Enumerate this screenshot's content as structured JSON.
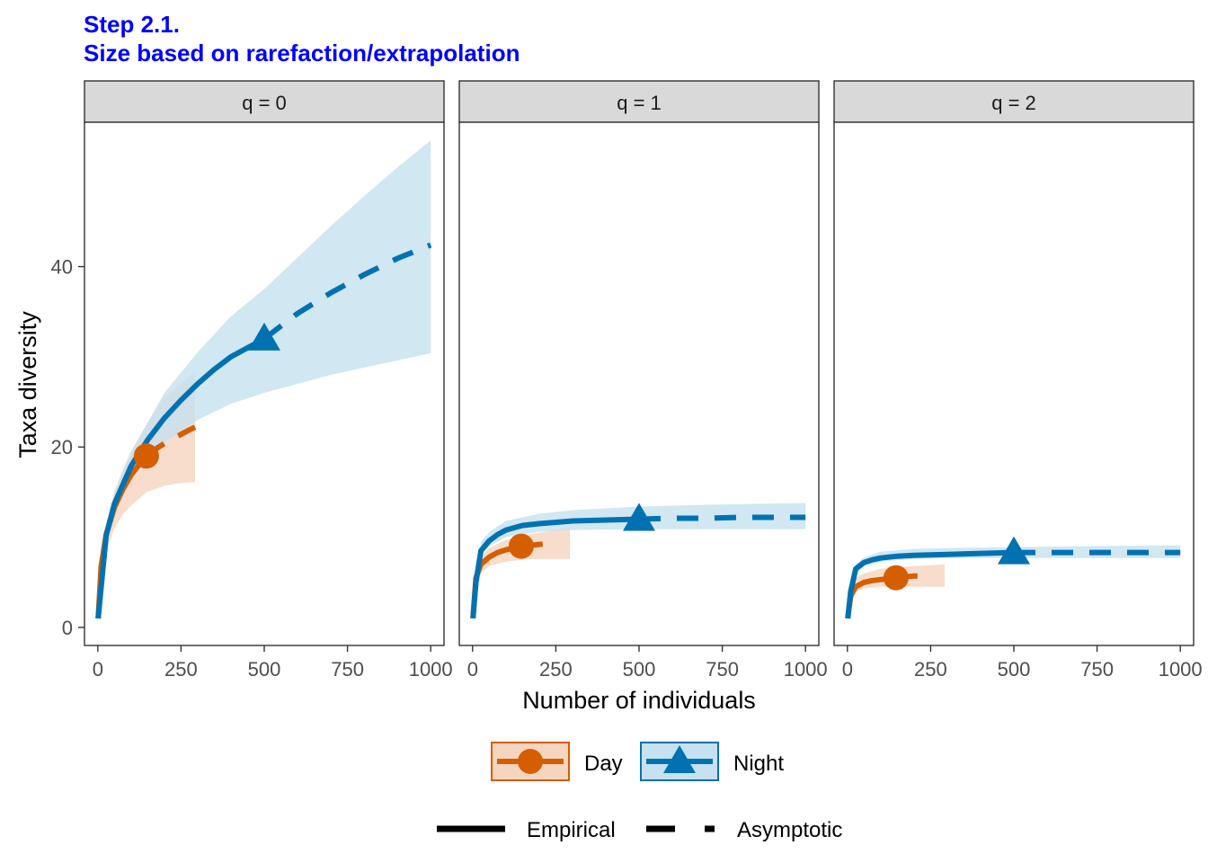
{
  "title": {
    "line1": "Step 2.1.",
    "line2": "Size based on rarefaction/extrapolation",
    "color": "#0000ff"
  },
  "colors": {
    "Day": "#d55e00",
    "Night": "#0072b2",
    "Day_band": "#f6d5bf",
    "Night_band": "#c6e1ef",
    "strip_bg": "#d9d9d9"
  },
  "chart_data": {
    "type": "line",
    "xlabel": "Number of individuals",
    "ylabel": "Taxa diversity",
    "xlim": [
      -40,
      1040
    ],
    "ylim": [
      -2,
      56
    ],
    "xticks": [
      0,
      250,
      500,
      750,
      1000
    ],
    "xtick_labels": [
      "0",
      "250",
      "500",
      "750",
      "1000"
    ],
    "yticks": [
      0,
      20,
      40
    ],
    "ytick_labels": [
      "0",
      "20",
      "40"
    ],
    "grid": false,
    "legend_position": "bottom",
    "legend": {
      "series": [
        {
          "name": "Day",
          "marker": "circle"
        },
        {
          "name": "Night",
          "marker": "triangle"
        }
      ],
      "linetypes": [
        {
          "name": "Empirical",
          "style": "solid"
        },
        {
          "name": "Asymptotic",
          "style": "dashed"
        }
      ]
    },
    "panels": [
      {
        "label": "q = 0",
        "series": [
          {
            "name": "Day",
            "observed": {
              "x": 146,
              "y": 19.0
            },
            "rarefaction": {
              "x": [
                1,
                10,
                25,
                50,
                75,
                100,
                125,
                146
              ],
              "y": [
                1.0,
                6.8,
                10.3,
                13.3,
                15.3,
                16.9,
                18.1,
                19.0
              ]
            },
            "extrapolation": {
              "x": [
                146,
                175,
                200,
                225,
                250,
                275,
                292
              ],
              "y": [
                19.0,
                19.8,
                20.4,
                20.9,
                21.4,
                21.9,
                22.2
              ]
            },
            "band": {
              "x": [
                1,
                25,
                50,
                75,
                100,
                146,
                200,
                250,
                292
              ],
              "lower": [
                1.0,
                8.5,
                11.0,
                12.5,
                13.5,
                15.0,
                15.7,
                16.0,
                16.1
              ],
              "upper": [
                1.0,
                11.5,
                15.0,
                17.5,
                19.5,
                22.5,
                25.5,
                27.0,
                28.3
              ]
            }
          },
          {
            "name": "Night",
            "observed": {
              "x": 500,
              "y": 32.0
            },
            "rarefaction": {
              "x": [
                1,
                25,
                50,
                100,
                150,
                200,
                250,
                300,
                350,
                400,
                450,
                500
              ],
              "y": [
                1.0,
                10.2,
                13.7,
                17.9,
                20.8,
                23.2,
                25.2,
                27.0,
                28.6,
                30.0,
                31.0,
                32.0
              ]
            },
            "extrapolation": {
              "x": [
                500,
                600,
                700,
                800,
                900,
                1000
              ],
              "y": [
                32.0,
                34.8,
                37.1,
                39.1,
                40.9,
                42.4
              ]
            },
            "band": {
              "x": [
                1,
                25,
                50,
                100,
                200,
                300,
                400,
                500,
                600,
                700,
                800,
                900,
                1000
              ],
              "lower": [
                1.0,
                9.5,
                12.5,
                16.5,
                20.5,
                23.0,
                24.8,
                26.0,
                27.0,
                28.0,
                28.8,
                29.6,
                30.4
              ],
              "upper": [
                1.0,
                11.0,
                15.0,
                19.5,
                26.0,
                30.5,
                34.5,
                37.5,
                41.0,
                44.5,
                47.8,
                51.0,
                54.0
              ]
            }
          }
        ]
      },
      {
        "label": "q = 1",
        "series": [
          {
            "name": "Day",
            "observed": {
              "x": 146,
              "y": 9.0
            },
            "rarefaction": {
              "x": [
                1,
                10,
                25,
                50,
                75,
                100,
                125,
                146
              ],
              "y": [
                1.0,
                5.5,
                7.0,
                7.8,
                8.3,
                8.6,
                8.8,
                9.0
              ]
            },
            "extrapolation": {
              "x": [
                146,
                175,
                200,
                225,
                250
              ],
              "y": [
                9.0,
                9.1,
                9.2,
                9.3,
                9.4
              ]
            },
            "band": {
              "x": [
                1,
                25,
                50,
                100,
                146,
                200,
                250,
                292
              ],
              "lower": [
                1.0,
                6.0,
                6.8,
                7.3,
                7.5,
                7.6,
                7.6,
                7.6
              ],
              "upper": [
                1.0,
                7.8,
                8.8,
                9.7,
                10.2,
                10.5,
                10.8,
                11.2
              ]
            }
          },
          {
            "name": "Night",
            "observed": {
              "x": 500,
              "y": 12.0
            },
            "rarefaction": {
              "x": [
                1,
                10,
                25,
                50,
                75,
                100,
                150,
                200,
                300,
                400,
                500
              ],
              "y": [
                1.0,
                5.0,
                8.5,
                9.6,
                10.3,
                10.8,
                11.3,
                11.5,
                11.8,
                11.9,
                12.0
              ]
            },
            "extrapolation": {
              "x": [
                500,
                600,
                700,
                800,
                900,
                1000
              ],
              "y": [
                12.0,
                12.1,
                12.1,
                12.2,
                12.2,
                12.2
              ]
            },
            "band": {
              "x": [
                1,
                25,
                50,
                100,
                200,
                300,
                500,
                700,
                1000
              ],
              "lower": [
                1.0,
                8.0,
                9.0,
                10.0,
                10.6,
                10.8,
                10.9,
                10.9,
                10.9
              ],
              "upper": [
                1.0,
                9.5,
                10.6,
                11.8,
                12.6,
                13.0,
                13.4,
                13.6,
                13.8
              ]
            }
          }
        ]
      },
      {
        "label": "q = 2",
        "series": [
          {
            "name": "Day",
            "observed": {
              "x": 146,
              "y": 5.5
            },
            "rarefaction": {
              "x": [
                1,
                10,
                25,
                50,
                75,
                100,
                125,
                146
              ],
              "y": [
                1.0,
                3.5,
                4.5,
                5.0,
                5.2,
                5.3,
                5.4,
                5.5
              ]
            },
            "extrapolation": {
              "x": [
                146,
                175,
                200,
                225
              ],
              "y": [
                5.5,
                5.6,
                5.7,
                5.7
              ]
            },
            "band": {
              "x": [
                1,
                25,
                50,
                100,
                146,
                200,
                250,
                292
              ],
              "lower": [
                1.0,
                4.0,
                4.3,
                4.5,
                4.5,
                4.5,
                4.5,
                4.5
              ],
              "upper": [
                1.0,
                5.5,
                6.0,
                6.5,
                6.7,
                6.8,
                6.9,
                7.0
              ]
            }
          },
          {
            "name": "Night",
            "observed": {
              "x": 500,
              "y": 8.3
            },
            "rarefaction": {
              "x": [
                1,
                10,
                25,
                50,
                75,
                100,
                150,
                200,
                300,
                400,
                500
              ],
              "y": [
                1.0,
                4.0,
                6.5,
                7.2,
                7.5,
                7.7,
                7.9,
                8.0,
                8.1,
                8.2,
                8.3
              ]
            },
            "extrapolation": {
              "x": [
                500,
                600,
                700,
                800,
                900,
                1000
              ],
              "y": [
                8.3,
                8.3,
                8.3,
                8.3,
                8.3,
                8.3
              ]
            },
            "band": {
              "x": [
                1,
                25,
                50,
                100,
                200,
                300,
                500,
                700,
                1000
              ],
              "lower": [
                1.0,
                6.0,
                6.8,
                7.3,
                7.6,
                7.7,
                7.7,
                7.7,
                7.7
              ],
              "upper": [
                1.0,
                7.0,
                7.8,
                8.4,
                8.7,
                8.8,
                8.9,
                9.0,
                9.1
              ]
            }
          }
        ]
      }
    ]
  }
}
